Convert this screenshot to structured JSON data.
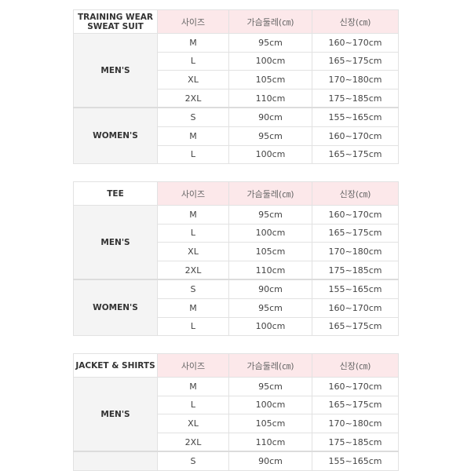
{
  "header": {
    "size": "사이즈",
    "chest": "가슴둘레(㎝)",
    "height": "신장(㎝)"
  },
  "tables": [
    {
      "title_lines": [
        "TRAINING WEAR",
        "SWEAT SUIT"
      ],
      "groups": [
        {
          "label": "MEN'S",
          "rows": [
            [
              "M",
              "95cm",
              "160~170cm"
            ],
            [
              "L",
              "100cm",
              "165~175cm"
            ],
            [
              "XL",
              "105cm",
              "170~180cm"
            ],
            [
              "2XL",
              "110cm",
              "175~185cm"
            ]
          ]
        },
        {
          "label": "WOMEN'S",
          "rows": [
            [
              "S",
              "90cm",
              "155~165cm"
            ],
            [
              "M",
              "95cm",
              "160~170cm"
            ],
            [
              "L",
              "100cm",
              "165~175cm"
            ]
          ]
        }
      ]
    },
    {
      "title_lines": [
        "TEE"
      ],
      "groups": [
        {
          "label": "MEN'S",
          "rows": [
            [
              "M",
              "95cm",
              "160~170cm"
            ],
            [
              "L",
              "100cm",
              "165~175cm"
            ],
            [
              "XL",
              "105cm",
              "170~180cm"
            ],
            [
              "2XL",
              "110cm",
              "175~185cm"
            ]
          ]
        },
        {
          "label": "WOMEN'S",
          "rows": [
            [
              "S",
              "90cm",
              "155~165cm"
            ],
            [
              "M",
              "95cm",
              "160~170cm"
            ],
            [
              "L",
              "100cm",
              "165~175cm"
            ]
          ]
        }
      ]
    },
    {
      "title_lines": [
        "JACKET & SHIRTS"
      ],
      "groups": [
        {
          "label": "MEN'S",
          "rows": [
            [
              "M",
              "95cm",
              "160~170cm"
            ],
            [
              "L",
              "100cm",
              "165~175cm"
            ],
            [
              "XL",
              "105cm",
              "170~180cm"
            ],
            [
              "2XL",
              "110cm",
              "175~185cm"
            ]
          ]
        },
        {
          "label": "",
          "rows": [
            [
              "S",
              "90cm",
              "155~165cm"
            ]
          ]
        }
      ]
    }
  ]
}
